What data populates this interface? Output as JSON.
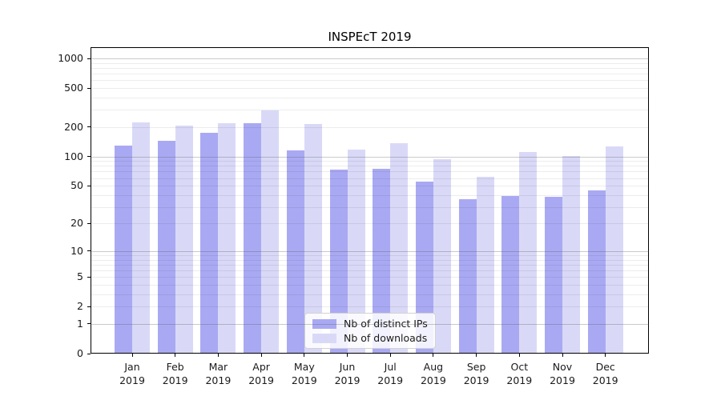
{
  "title": "INSPEcT 2019",
  "chart_data": {
    "type": "bar",
    "title": "INSPEcT 2019",
    "categories": [
      "Jan 2019",
      "Feb 2019",
      "Mar 2019",
      "Apr 2019",
      "May 2019",
      "Jun 2019",
      "Jul 2019",
      "Aug 2019",
      "Sep 2019",
      "Oct 2019",
      "Nov 2019",
      "Dec 2019"
    ],
    "x_tick_month": [
      "Jan",
      "Feb",
      "Mar",
      "Apr",
      "May",
      "Jun",
      "Jul",
      "Aug",
      "Sep",
      "Oct",
      "Nov",
      "Dec"
    ],
    "x_tick_year": "2019",
    "series": [
      {
        "name": "Nb of distinct IPs",
        "color": "#a9a9f3",
        "values": [
          130,
          146,
          175,
          218,
          115,
          73,
          75,
          55,
          36,
          39,
          38,
          45
        ]
      },
      {
        "name": "Nb of downloads",
        "color": "#d9d9f7",
        "values": [
          225,
          208,
          220,
          296,
          215,
          118,
          137,
          93,
          62,
          111,
          101,
          128
        ]
      }
    ],
    "y_ticks": [
      0,
      1,
      2,
      5,
      10,
      20,
      50,
      100,
      200,
      500,
      1000
    ],
    "y_minor_gridlines": [
      2,
      3,
      4,
      5,
      6,
      7,
      8,
      9,
      20,
      30,
      40,
      50,
      60,
      70,
      80,
      90,
      200,
      300,
      400,
      500,
      600,
      700,
      800,
      900
    ],
    "y_major_gridlines": [
      1,
      10,
      100,
      1000
    ],
    "y_scale": "log10(1+y)",
    "ylim": [
      0,
      1300
    ],
    "grid": true,
    "legend_position": "lower center",
    "colors": {
      "bar_distinct_ips": "#a9a9f3",
      "bar_downloads": "#d9d9f7",
      "major_grid": "#b9b9b9",
      "minor_grid": "#ececec",
      "axis": "#000000",
      "text": "#1a1a1a"
    }
  }
}
